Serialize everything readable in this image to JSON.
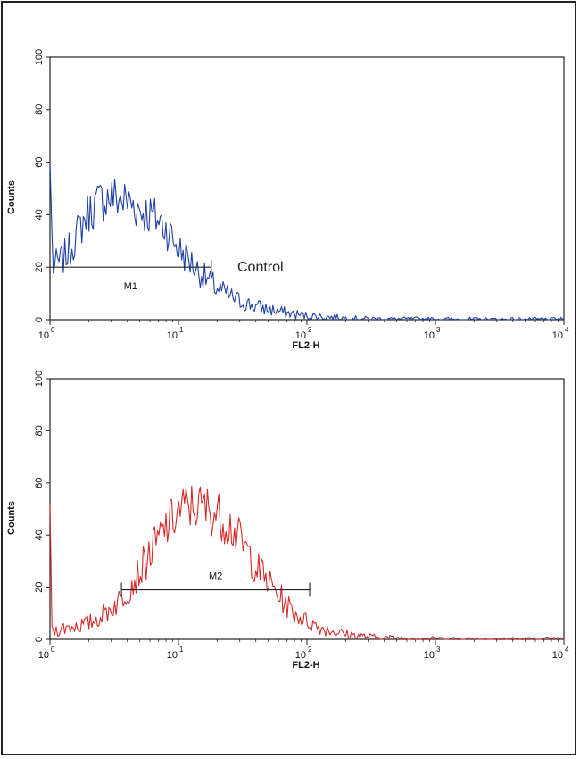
{
  "chart_data": [
    {
      "type": "line",
      "subtype": "flow-cytometry-histogram",
      "xlabel": "FL2-H",
      "ylabel": "Counts",
      "xscale": "log",
      "xlim": [
        1,
        10000
      ],
      "ylim": [
        0,
        100
      ],
      "xticks": [
        1,
        10,
        100,
        1000,
        10000
      ],
      "xtick_base": "10",
      "xtick_exponents": [
        "0",
        "1",
        "2",
        "3",
        "4"
      ],
      "yticks": [
        "0",
        "20",
        "40",
        "60",
        "80",
        "100"
      ],
      "annotation": "Control",
      "series": [
        {
          "color": "#1f3fa3",
          "x": [
            1.0,
            1.05,
            1.2,
            1.4,
            1.6,
            1.8,
            2.0,
            2.3,
            2.6,
            3.0,
            3.5,
            4.0,
            4.5,
            5.0,
            6.0,
            7.0,
            8.0,
            9.0,
            10,
            12,
            14,
            17,
            20,
            25,
            30,
            40,
            50,
            70,
            100,
            150,
            200,
            300,
            500,
            1000,
            2000,
            5000,
            10000
          ],
          "y": [
            60,
            20,
            22,
            26,
            32,
            37,
            41,
            44,
            46,
            47,
            46,
            45,
            44,
            42,
            40,
            38,
            35,
            31,
            27,
            23,
            19,
            15,
            12,
            9,
            7,
            5,
            4,
            2.5,
            1.5,
            1,
            0.6,
            0.4,
            0.3,
            0.2,
            0.1,
            0.1,
            0.1
          ]
        }
      ],
      "gate": {
        "label": "M1",
        "x_start": 1.0,
        "x_end": 18,
        "y": 20
      }
    },
    {
      "type": "line",
      "subtype": "flow-cytometry-histogram",
      "xlabel": "FL2-H",
      "ylabel": "Counts",
      "xscale": "log",
      "xlim": [
        1,
        10000
      ],
      "ylim": [
        0,
        100
      ],
      "xticks": [
        1,
        10,
        100,
        1000,
        10000
      ],
      "xtick_base": "10",
      "xtick_exponents": [
        "0",
        "1",
        "2",
        "3",
        "4"
      ],
      "yticks": [
        "0",
        "20",
        "40",
        "60",
        "80",
        "100"
      ],
      "series": [
        {
          "color": "#d42a2a",
          "x": [
            1.0,
            1.03,
            1.2,
            1.5,
            2.0,
            2.5,
            3.0,
            3.5,
            4.0,
            5.0,
            6.0,
            7.0,
            8.0,
            9.0,
            10,
            12,
            14,
            17,
            20,
            25,
            30,
            35,
            40,
            50,
            60,
            70,
            80,
            100,
            120,
            150,
            200,
            300,
            500,
            1000,
            2000,
            5000,
            10000
          ],
          "y": [
            52,
            3,
            4,
            5,
            6,
            9,
            12,
            15,
            19,
            26,
            33,
            38,
            43,
            46,
            49,
            51,
            51,
            50,
            48,
            44,
            38,
            33,
            28,
            22,
            17,
            13,
            10,
            7,
            5,
            3.5,
            2,
            1,
            0.5,
            0.3,
            0.2,
            0.1,
            0.1
          ]
        }
      ],
      "gate": {
        "label": "M2",
        "x_start": 3.6,
        "x_end": 105,
        "y": 19
      }
    }
  ]
}
